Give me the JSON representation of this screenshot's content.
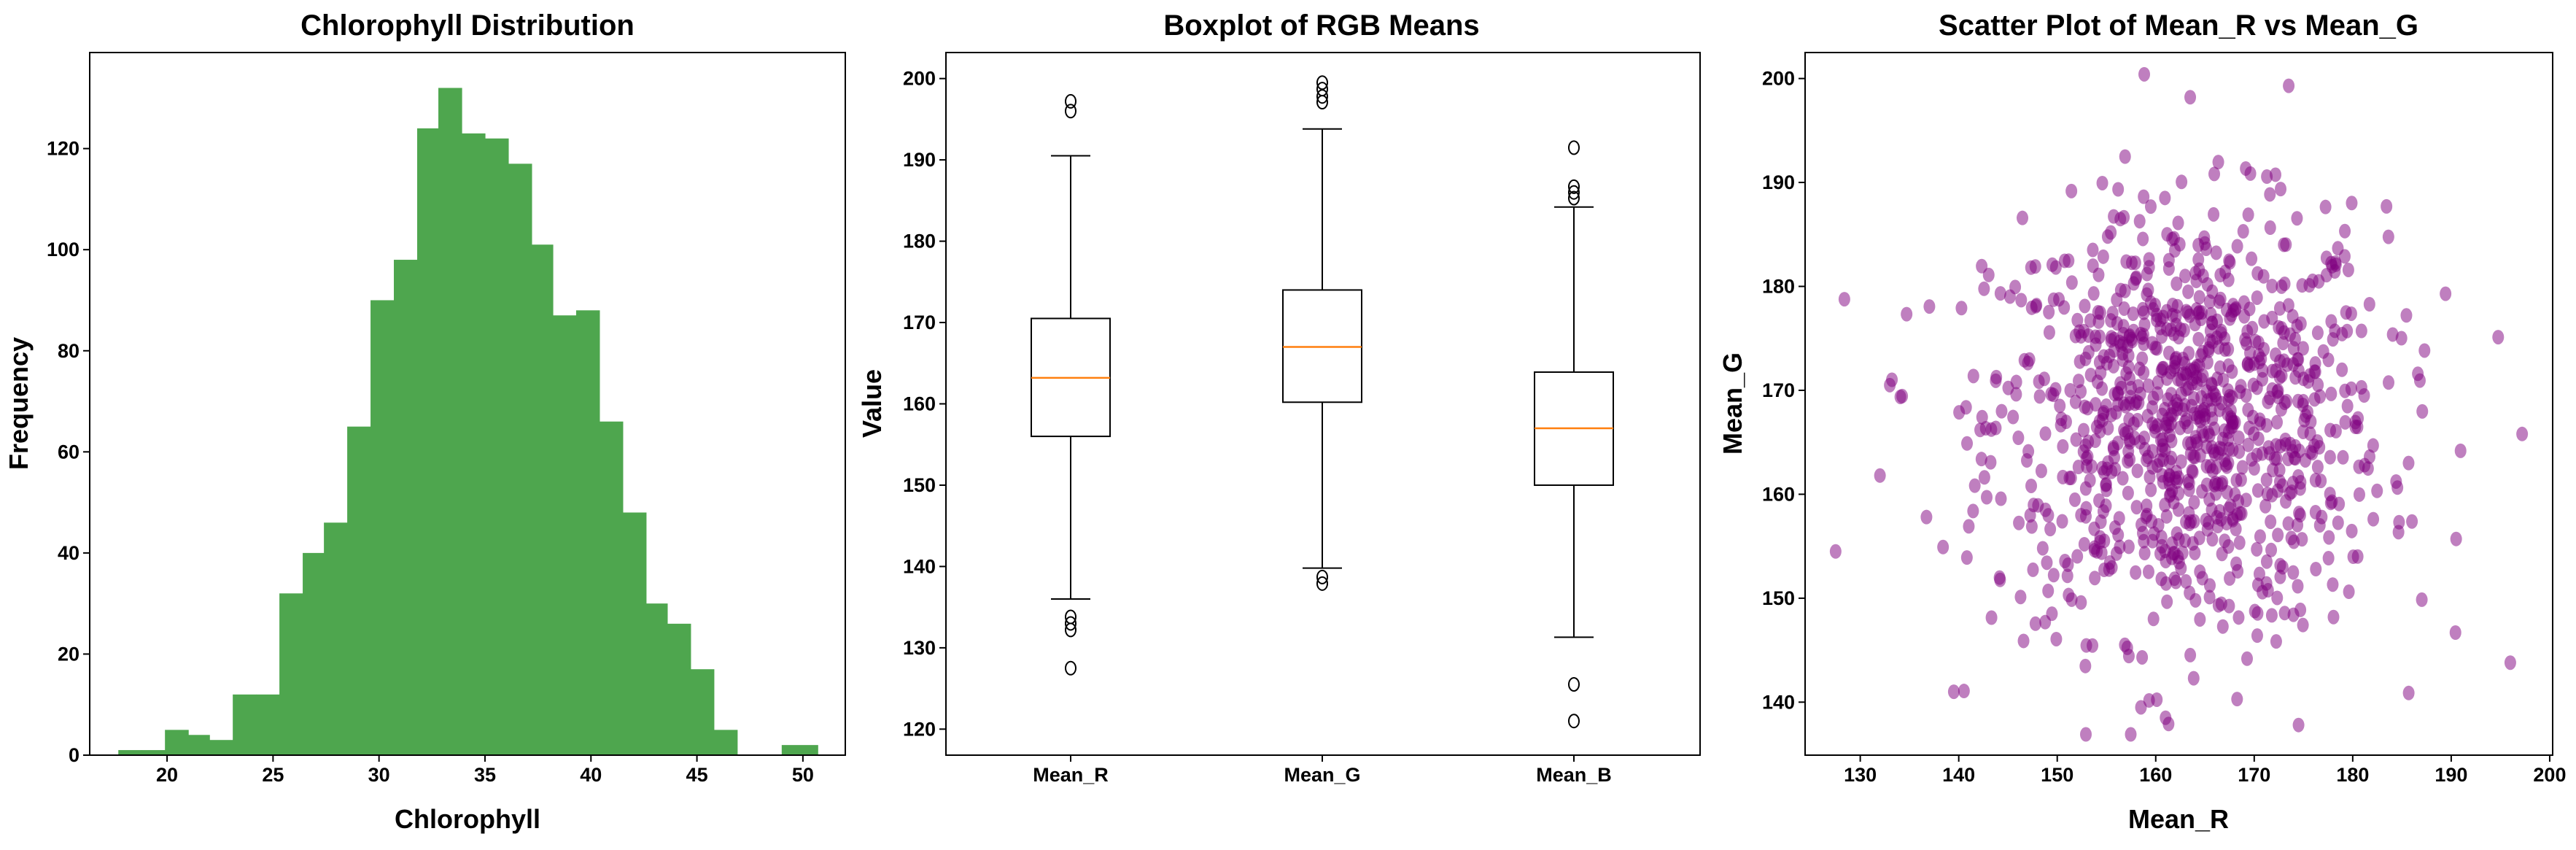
{
  "chart_data": [
    {
      "type": "bar",
      "subtype": "histogram",
      "title": "Chlorophyll Distribution",
      "xlabel": "Chlorophyll",
      "ylabel": "Frequency",
      "color": "#4ea64e",
      "xlim": [
        16.35,
        52.0
      ],
      "ylim": [
        0,
        139
      ],
      "xticks": [
        20,
        25,
        30,
        35,
        40,
        45,
        50
      ],
      "yticks": [
        0,
        20,
        40,
        60,
        80,
        100,
        120
      ],
      "bin_edges": [
        17.7,
        18.8,
        19.9,
        21.0,
        22.0,
        23.1,
        24.2,
        25.3,
        26.4,
        27.4,
        28.5,
        29.6,
        30.7,
        31.8,
        32.8,
        33.9,
        35.0,
        36.1,
        37.2,
        38.2,
        39.3,
        40.4,
        41.5,
        42.6,
        43.6,
        44.7,
        45.8,
        46.9,
        48.0,
        49.0,
        50.7
      ],
      "values": [
        1,
        1,
        5,
        4,
        3,
        12,
        12,
        32,
        40,
        46,
        65,
        90,
        98,
        124,
        132,
        123,
        122,
        117,
        101,
        87,
        88,
        66,
        48,
        30,
        26,
        17,
        5,
        0,
        0,
        2
      ]
    },
    {
      "type": "box",
      "title": "Boxplot of RGB Means",
      "xlabel": "",
      "ylabel": "Value",
      "ylim": [
        116.8,
        203.2
      ],
      "yticks": [
        120,
        130,
        140,
        150,
        160,
        170,
        180,
        190,
        200
      ],
      "categories": [
        "Mean_R",
        "Mean_G",
        "Mean_B"
      ],
      "median_color": "#ff7f0e",
      "boxes": [
        {
          "name": "Mean_R",
          "whisker_low": 136.0,
          "q1": 156.0,
          "median": 163.2,
          "q3": 170.5,
          "whisker_high": 190.5,
          "outliers": [
            197.2,
            196.0,
            133.8,
            133.0,
            132.2,
            127.5
          ]
        },
        {
          "name": "Mean_G",
          "whisker_low": 139.8,
          "q1": 160.2,
          "median": 167.0,
          "q3": 174.0,
          "whisker_high": 193.8,
          "outliers": [
            199.5,
            198.7,
            197.8,
            197.1,
            138.7,
            137.9
          ]
        },
        {
          "name": "Mean_B",
          "whisker_low": 131.3,
          "q1": 150.0,
          "median": 157.0,
          "q3": 163.9,
          "whisker_high": 184.2,
          "outliers": [
            191.5,
            186.7,
            186.0,
            185.3,
            125.5,
            121.0
          ]
        }
      ]
    },
    {
      "type": "scatter",
      "title": "Scatter Plot of Mean_R vs Mean_G",
      "xlabel": "Mean_R",
      "ylabel": "Mean_G",
      "color": "#800080",
      "alpha": 0.5,
      "xlim": [
        124.4,
        200.3
      ],
      "ylim": [
        134.9,
        202.5
      ],
      "xticks": [
        130,
        140,
        150,
        160,
        170,
        180,
        190,
        200
      ],
      "yticks": [
        140,
        150,
        160,
        170,
        180,
        190,
        200
      ],
      "n_points": 1000,
      "distribution": {
        "mean_x": 163.2,
        "sd_x": 10.0,
        "mean_y": 167.0,
        "sd_y": 10.2
      },
      "notable_points": [
        [
          127.5,
          154.5
        ],
        [
          132.0,
          161.8
        ],
        [
          133.0,
          170.5
        ],
        [
          139.5,
          141.0
        ],
        [
          158.5,
          139.5
        ],
        [
          161.0,
          138.5
        ],
        [
          174.5,
          137.8
        ],
        [
          163.5,
          198.2
        ],
        [
          173.5,
          199.3
        ],
        [
          197.2,
          165.8
        ],
        [
          196.0,
          143.8
        ],
        [
          190.5,
          155.7
        ]
      ]
    }
  ]
}
